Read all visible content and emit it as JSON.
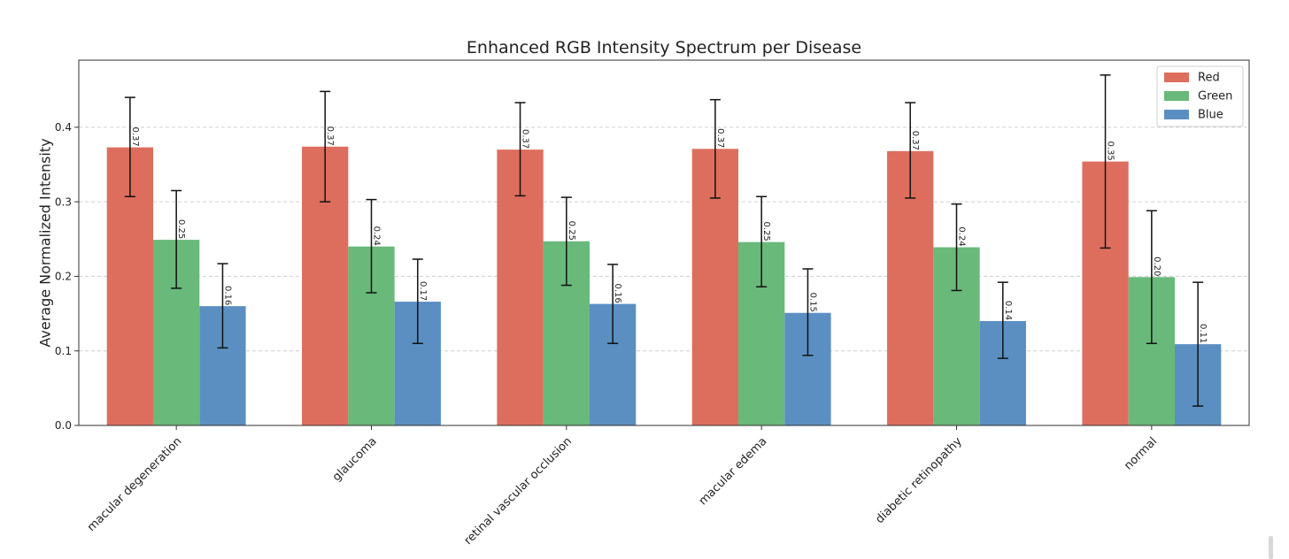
{
  "chart_data": {
    "type": "bar",
    "title": "Enhanced RGB Intensity Spectrum per Disease",
    "xlabel": "",
    "ylabel": "Average Normalized Intensity",
    "ylim": [
      0,
      0.49
    ],
    "yticks": [
      "0.0",
      "0.1",
      "0.2",
      "0.3",
      "0.4"
    ],
    "grid": "horizontal-dashed",
    "legend_position": "top-right",
    "categories": [
      "macular degeneration",
      "glaucoma",
      "retinal vascular occlusion",
      "macular edema",
      "diabetic retinopathy",
      "normal"
    ],
    "series": [
      {
        "name": "Red",
        "color": "#dd6e5d",
        "values": [
          0.373,
          0.374,
          0.37,
          0.371,
          0.368,
          0.354
        ],
        "labels": [
          "0.37",
          "0.37",
          "0.37",
          "0.37",
          "0.37",
          "0.35"
        ],
        "err_low": [
          0.307,
          0.3,
          0.308,
          0.305,
          0.305,
          0.238
        ],
        "err_high": [
          0.44,
          0.448,
          0.433,
          0.437,
          0.433,
          0.47
        ]
      },
      {
        "name": "Green",
        "color": "#68b97a",
        "values": [
          0.249,
          0.24,
          0.247,
          0.246,
          0.239,
          0.199
        ],
        "labels": [
          "0.25",
          "0.24",
          "0.25",
          "0.25",
          "0.24",
          "0.20"
        ],
        "err_low": [
          0.184,
          0.178,
          0.188,
          0.186,
          0.181,
          0.11
        ],
        "err_high": [
          0.315,
          0.303,
          0.306,
          0.307,
          0.297,
          0.288
        ]
      },
      {
        "name": "Blue",
        "color": "#5b8fc2",
        "values": [
          0.16,
          0.166,
          0.163,
          0.151,
          0.14,
          0.109
        ],
        "labels": [
          "0.16",
          "0.17",
          "0.16",
          "0.15",
          "0.14",
          "0.11"
        ],
        "err_low": [
          0.104,
          0.11,
          0.11,
          0.094,
          0.09,
          0.026
        ],
        "err_high": [
          0.217,
          0.223,
          0.216,
          0.21,
          0.192,
          0.192
        ]
      }
    ]
  }
}
